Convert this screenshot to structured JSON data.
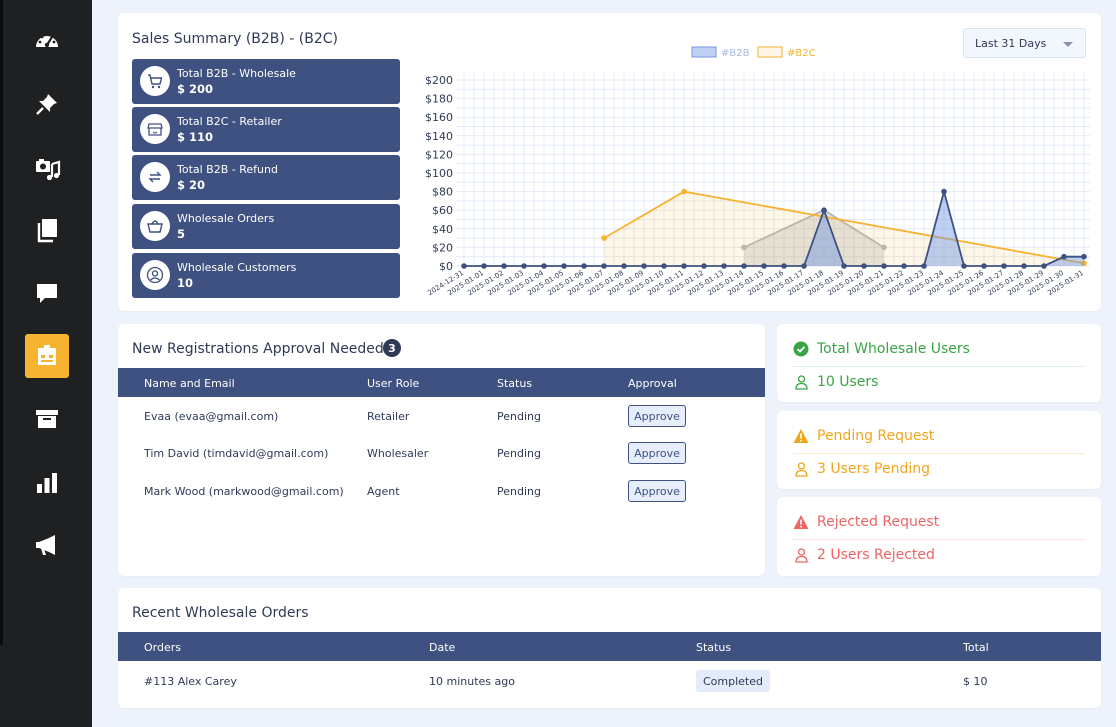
{
  "sidebar": {
    "items": [
      {
        "icon": "dashboard-icon"
      },
      {
        "icon": "pin-icon"
      },
      {
        "icon": "media-icon"
      },
      {
        "icon": "pages-icon"
      },
      {
        "icon": "comments-icon"
      },
      {
        "icon": "store-icon",
        "active": true
      },
      {
        "icon": "archive-icon"
      },
      {
        "icon": "chart-icon"
      },
      {
        "icon": "megaphone-icon"
      }
    ]
  },
  "sales_summary": {
    "title": "Sales Summary (B2B) - (B2C)",
    "range_select": {
      "value": "Last 31 Days"
    },
    "boxes": [
      {
        "icon": "cart-icon",
        "label": "Total B2B - Wholesale",
        "value": "$ 200"
      },
      {
        "icon": "store-icon",
        "label": "Total B2C - Retailer",
        "value": "$ 110"
      },
      {
        "icon": "refund-icon",
        "label": "Total B2B - Refund",
        "value": "$ 20"
      },
      {
        "icon": "basket-icon",
        "label": "Wholesale Orders",
        "value": "5"
      },
      {
        "icon": "user-icon",
        "label": "Wholesale Customers",
        "value": "10"
      }
    ]
  },
  "chart_data": {
    "type": "area",
    "title": "",
    "xlabel": "",
    "ylabel": "",
    "ylim": [
      0,
      200
    ],
    "yticks": [
      "$0",
      "$20",
      "$40",
      "$60",
      "$80",
      "$100",
      "$120",
      "$140",
      "$160",
      "$180",
      "$200"
    ],
    "categories": [
      "2024-12-31",
      "2025-01-01",
      "2025-01-02",
      "2025-01-03",
      "2025-01-04",
      "2025-01-05",
      "2025-01-06",
      "2025-01-07",
      "2025-01-08",
      "2025-01-09",
      "2025-01-10",
      "2025-01-11",
      "2025-01-12",
      "2025-01-13",
      "2025-01-14",
      "2025-01-15",
      "2025-01-16",
      "2025-01-17",
      "2025-01-18",
      "2025-01-19",
      "2025-01-20",
      "2025-01-21",
      "2025-01-22",
      "2025-01-23",
      "2025-01-24",
      "2025-01-25",
      "2025-01-26",
      "2025-01-27",
      "2025-01-28",
      "2025-01-29",
      "2025-01-30",
      "2025-01-31"
    ],
    "grid": true,
    "legend_position": "top",
    "series": [
      {
        "name": "#B2B",
        "color": "#3e5180",
        "fill": "rgba(110,150,230,0.45)",
        "points": [
          [
            0,
            0
          ],
          [
            1,
            0
          ],
          [
            2,
            0
          ],
          [
            3,
            0
          ],
          [
            4,
            0
          ],
          [
            5,
            0
          ],
          [
            6,
            0
          ],
          [
            7,
            0
          ],
          [
            8,
            0
          ],
          [
            9,
            0
          ],
          [
            10,
            0
          ],
          [
            11,
            0
          ],
          [
            12,
            0
          ],
          [
            13,
            0
          ],
          [
            14,
            0
          ],
          [
            15,
            0
          ],
          [
            16,
            0
          ],
          [
            17,
            0
          ],
          [
            18,
            60
          ],
          [
            19,
            0
          ],
          [
            20,
            0
          ],
          [
            21,
            0
          ],
          [
            22,
            0
          ],
          [
            23,
            0
          ],
          [
            24,
            80
          ],
          [
            25,
            0
          ],
          [
            26,
            0
          ],
          [
            27,
            0
          ],
          [
            28,
            0
          ],
          [
            29,
            0
          ],
          [
            30,
            10
          ],
          [
            31,
            10
          ]
        ]
      },
      {
        "name": "#B2C",
        "color": "#f6b332",
        "fill": "rgba(246,179,50,0.12)",
        "points": [
          [
            7,
            30
          ],
          [
            11,
            80
          ],
          [
            31,
            3
          ]
        ]
      },
      {
        "name": "",
        "color": "#b5b5b5",
        "fill": "rgba(150,150,150,0.25)",
        "points": [
          [
            14,
            20
          ],
          [
            18,
            60
          ],
          [
            21,
            20
          ]
        ]
      }
    ]
  },
  "registrations": {
    "title": "New Registrations Approval Needed",
    "count": "3",
    "columns": [
      "Name and Email",
      "User Role",
      "Status",
      "Approval"
    ],
    "rows": [
      {
        "name": "Evaa (evaa@gmail.com)",
        "role": "Retailer",
        "status": "Pending",
        "action": "Approve"
      },
      {
        "name": "Tim David (timdavid@gmail.com)",
        "role": "Wholesaler",
        "status": "Pending",
        "action": "Approve"
      },
      {
        "name": "Mark Wood (markwood@gmail.com)",
        "role": "Agent",
        "status": "Pending",
        "action": "Approve"
      }
    ]
  },
  "stats": {
    "total_users": {
      "title": "Total Wholesale Users",
      "sub": "10 Users",
      "color": "#3aa346"
    },
    "pending": {
      "title": "Pending Request",
      "sub": "3 Users Pending",
      "color": "#f1a51c"
    },
    "rejected": {
      "title": "Rejected Request",
      "sub": "2 Users Rejected",
      "color": "#ee6464"
    }
  },
  "orders": {
    "title": "Recent Wholesale Orders",
    "columns": [
      "Orders",
      "Date",
      "Status",
      "Total"
    ],
    "rows": [
      {
        "order": "#113 Alex Carey",
        "date": "10 minutes ago",
        "status": "Completed",
        "total": "$ 10"
      }
    ]
  }
}
